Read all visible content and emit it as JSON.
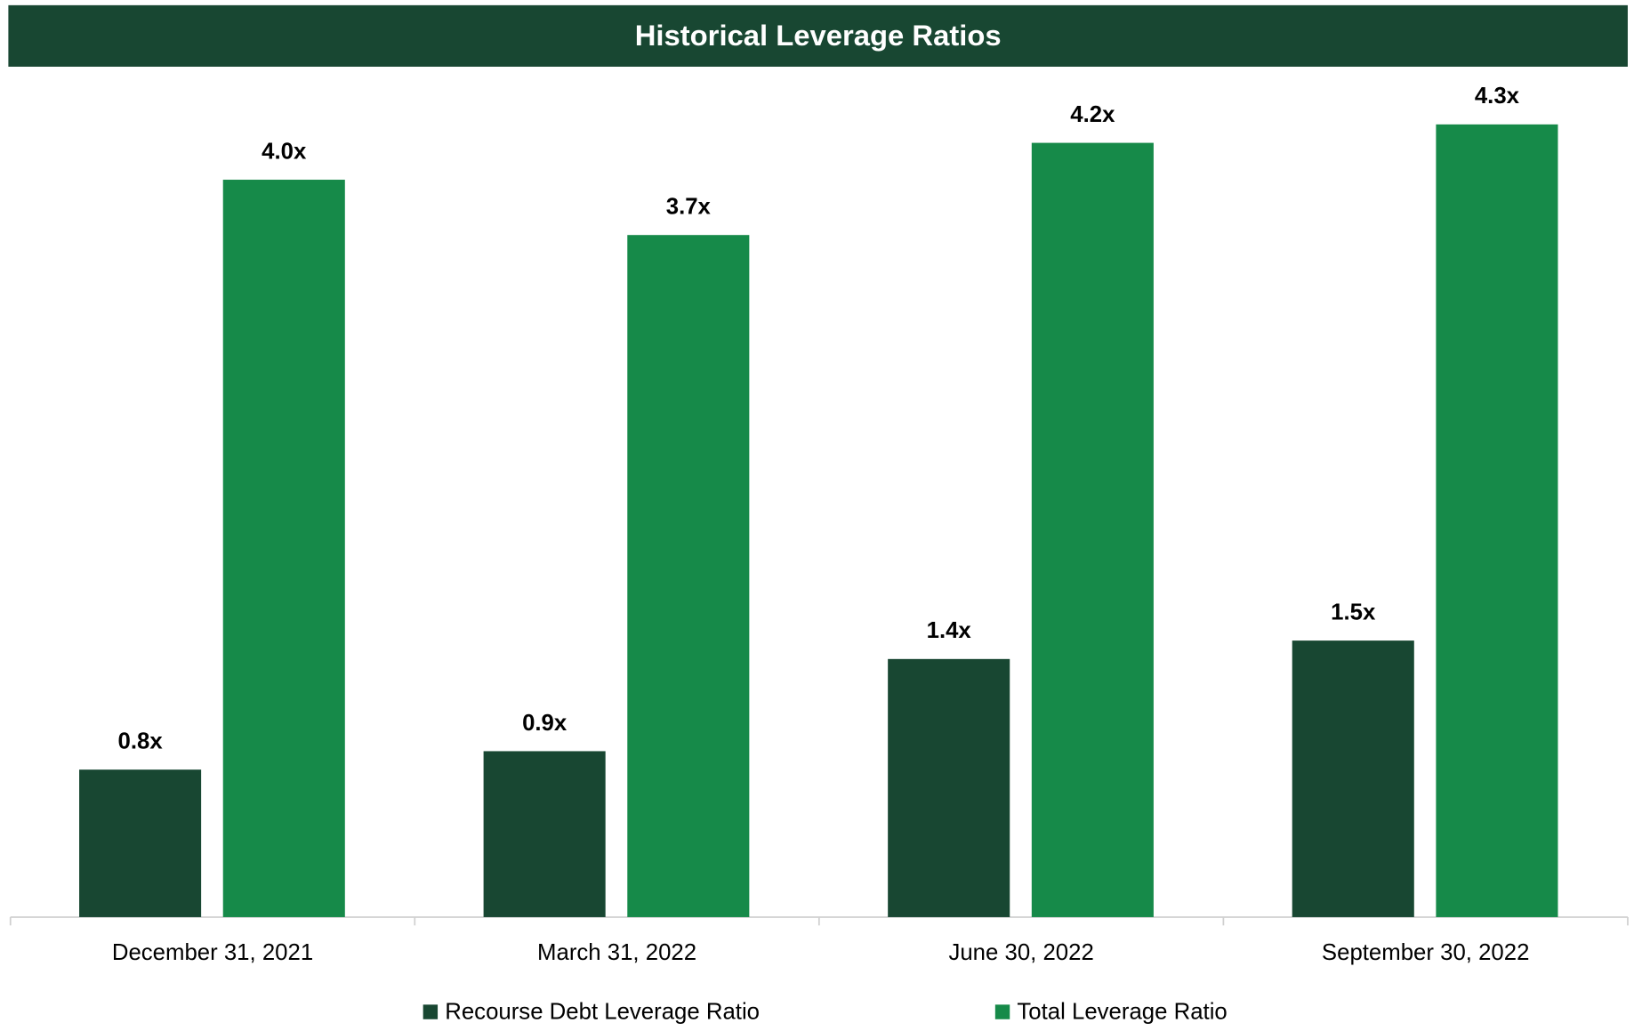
{
  "chart_data": {
    "type": "bar",
    "title": "Historical Leverage Ratios",
    "categories": [
      "December 31, 2021",
      "March 31, 2022",
      "June 30, 2022",
      "September 30, 2022"
    ],
    "series": [
      {
        "name": "Recourse Debt Leverage Ratio",
        "color": "#184732",
        "values": [
          0.8,
          0.9,
          1.4,
          1.5
        ],
        "value_labels": [
          "0.8x",
          "0.9x",
          "1.4x",
          "1.5x"
        ]
      },
      {
        "name": "Total Leverage Ratio",
        "color": "#168a49",
        "values": [
          4.0,
          3.7,
          4.2,
          4.3
        ],
        "value_labels": [
          "4.0x",
          "3.7x",
          "4.2x",
          "4.3x"
        ]
      }
    ],
    "ylim": [
      0,
      4.5
    ],
    "title_color": "#184732",
    "legend": "bottom"
  }
}
